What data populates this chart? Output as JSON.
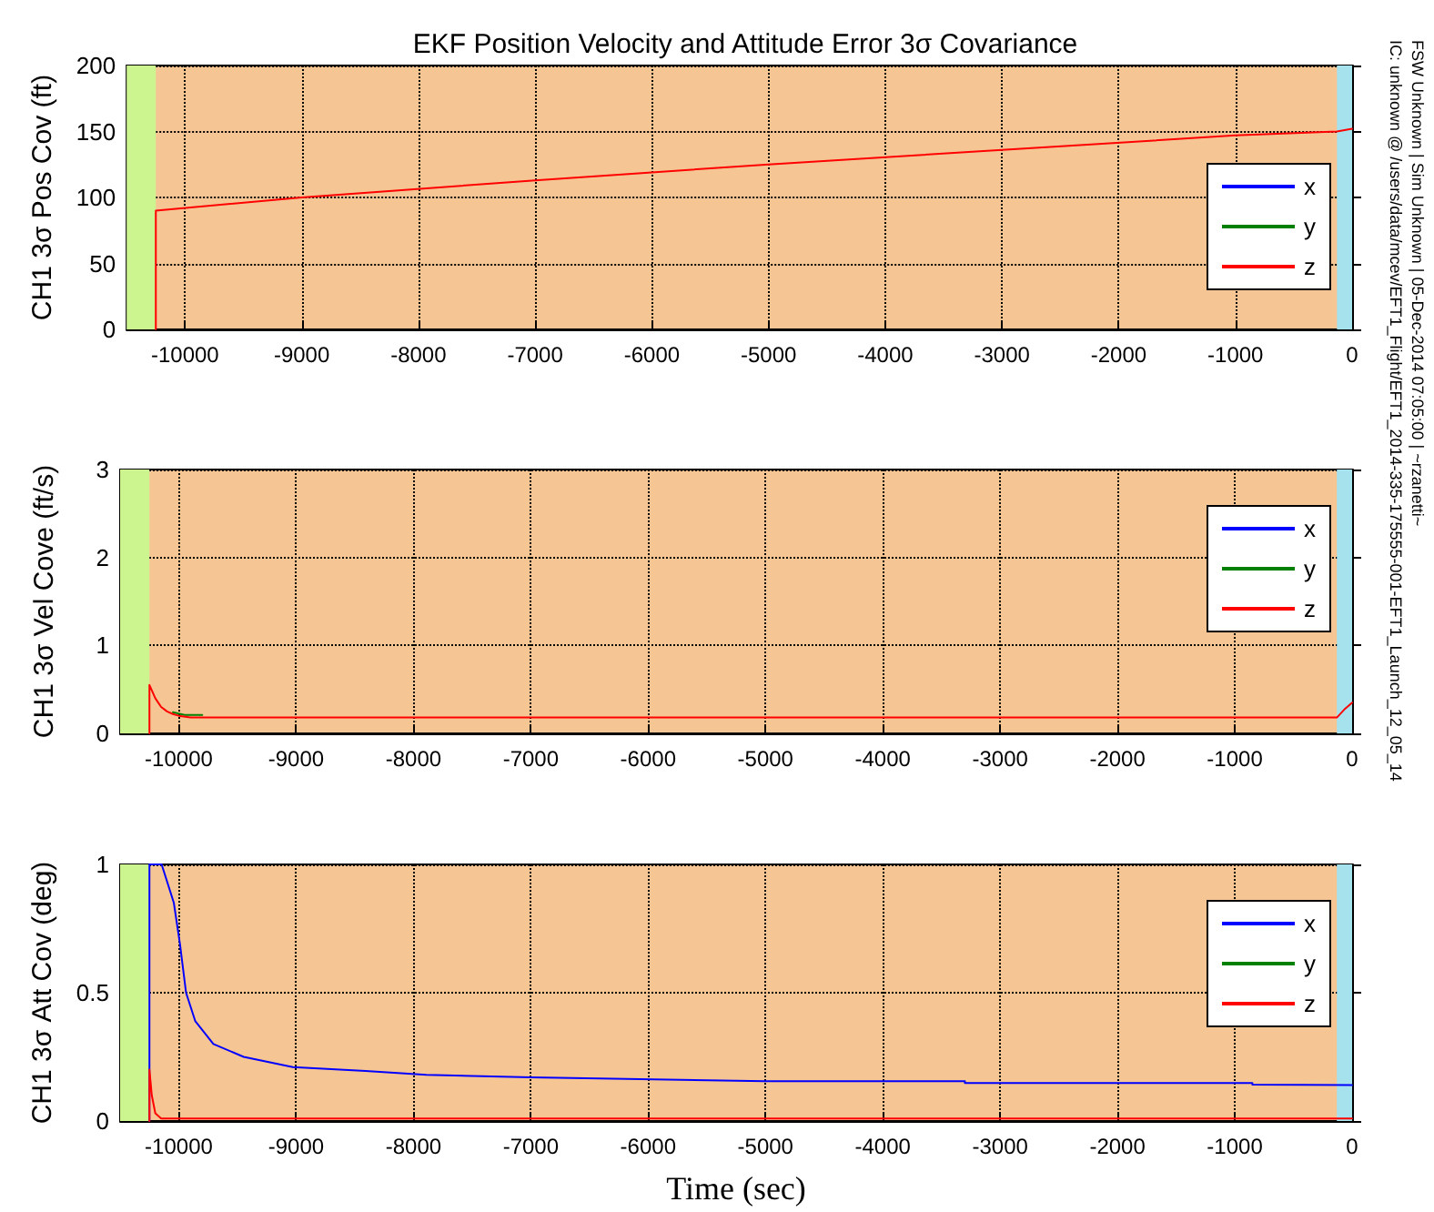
{
  "chart_data": [
    {
      "type": "line",
      "title": "EKF Position Velocity and Attitude Error 3σ Covariance",
      "ylabel": "CH1 3σ Pos Cov (ft)",
      "annotations": [
        "FSW Unknown  |  Sim Unknown  |  05-Dec-2014 07:05:00  |  ~rzanetti~",
        "IC: unknown @ /users/data/mcev/EFT1_Flight/EFT1_2014-335-175555-001-EFT1_Launch_12_05_14"
      ],
      "xlim": [
        -10500,
        0
      ],
      "xticks": [
        -10000,
        -9000,
        -8000,
        -7000,
        -6000,
        -5000,
        -4000,
        -3000,
        -2000,
        -1000,
        0
      ],
      "ylim": [
        0,
        200
      ],
      "yticks": [
        0,
        50,
        100,
        150,
        200
      ],
      "grid": true,
      "legend": "right",
      "marker": "none",
      "line_style": "solid",
      "bands": [
        {
          "axis": "x",
          "from": -10500,
          "to": -10250,
          "color": "#ccf590"
        },
        {
          "axis": "x",
          "from": -130,
          "to": 0,
          "color": "#a6e2ee"
        }
      ],
      "series": [
        {
          "name": "x",
          "color": "#0000ff"
        },
        {
          "name": "y",
          "color": "#008000"
        },
        {
          "name": "z",
          "color": "#ff0000",
          "x": [
            -10250,
            -10250,
            -9000,
            -7000,
            -6000,
            -5000,
            -3000,
            -1000,
            -130,
            0
          ],
          "values": [
            0,
            90,
            100,
            113,
            119,
            125,
            136,
            147,
            150,
            152
          ]
        }
      ]
    },
    {
      "type": "line",
      "ylabel": "CH1 3σ Vel Cove (ft/s)",
      "xlim": [
        -10500,
        0
      ],
      "xticks": [
        -10000,
        -9000,
        -8000,
        -7000,
        -6000,
        -5000,
        -4000,
        -3000,
        -2000,
        -1000,
        0
      ],
      "ylim": [
        0,
        3
      ],
      "yticks": [
        0,
        1,
        2,
        3
      ],
      "grid": true,
      "legend": "right",
      "marker": "none",
      "line_style": "solid",
      "bands": [
        {
          "axis": "x",
          "from": -10500,
          "to": -10250,
          "color": "#ccf590"
        },
        {
          "axis": "x",
          "from": -130,
          "to": 0,
          "color": "#a6e2ee"
        }
      ],
      "series": [
        {
          "name": "x",
          "color": "#0000ff"
        },
        {
          "name": "y",
          "color": "#008000",
          "x": [
            -10050,
            -9950,
            -9800
          ],
          "values": [
            0.24,
            0.21,
            0.21
          ]
        },
        {
          "name": "z",
          "color": "#ff0000",
          "x": [
            -10250,
            -10250,
            -10200,
            -10150,
            -10100,
            -10050,
            -10000,
            -9900,
            -130,
            -60,
            0
          ],
          "values": [
            0,
            0.55,
            0.4,
            0.3,
            0.25,
            0.22,
            0.2,
            0.18,
            0.18,
            0.28,
            0.35
          ]
        }
      ]
    },
    {
      "type": "line",
      "ylabel": "CH1 3σ Att Cov (deg)",
      "xlabel": "Time (sec)",
      "xlim": [
        -10500,
        0
      ],
      "xticks": [
        -10000,
        -9000,
        -8000,
        -7000,
        -6000,
        -5000,
        -4000,
        -3000,
        -2000,
        -1000,
        0
      ],
      "ylim": [
        0,
        1
      ],
      "yticks": [
        0,
        0.5,
        1
      ],
      "grid": true,
      "legend": "right",
      "marker": "none",
      "line_style": "solid",
      "bands": [
        {
          "axis": "x",
          "from": -10500,
          "to": -10250,
          "color": "#ccf590"
        },
        {
          "axis": "x",
          "from": -130,
          "to": 0,
          "color": "#a6e2ee"
        }
      ],
      "series": [
        {
          "name": "x",
          "color": "#0000ff",
          "x": [
            -10250,
            -10250,
            -10146,
            -10042,
            -9990,
            -9938,
            -9860,
            -9705,
            -9447,
            -9028,
            -8408,
            -7890,
            -7000,
            -5000,
            -3300,
            -3300,
            -850,
            -850,
            0
          ],
          "values": [
            0,
            1,
            1,
            0.85,
            0.69,
            0.5,
            0.39,
            0.3,
            0.25,
            0.21,
            0.195,
            0.18,
            0.17,
            0.155,
            0.155,
            0.148,
            0.148,
            0.142,
            0.14
          ]
        },
        {
          "name": "y",
          "color": "#008000"
        },
        {
          "name": "z",
          "color": "#ff0000",
          "x": [
            -10250,
            -10250,
            -10230,
            -10200,
            -10150,
            0
          ],
          "values": [
            0,
            0.2,
            0.1,
            0.03,
            0.01,
            0.01
          ]
        }
      ]
    }
  ]
}
